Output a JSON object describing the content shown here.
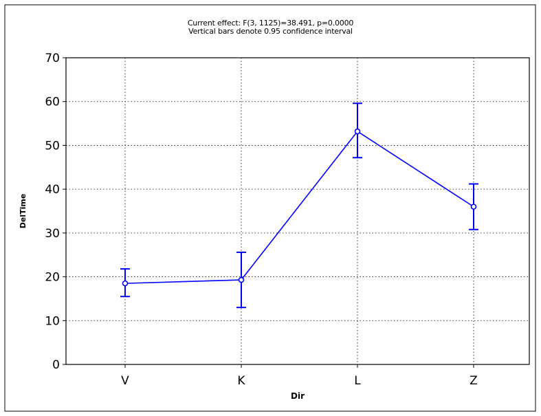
{
  "chart_data": {
    "type": "line",
    "title": "Current effect: F(3, 1125)=38.491, p=0.0000",
    "subtitle": "Vertical bars denote 0.95 confidence interval",
    "xlabel": "Dir",
    "ylabel": "DelTime",
    "categories": [
      "V",
      "K",
      "L",
      "Z"
    ],
    "ylim": [
      0,
      70
    ],
    "yticks": [
      0,
      10,
      20,
      30,
      40,
      50,
      60,
      70
    ],
    "grid": true,
    "series": [
      {
        "values": [
          18.5,
          19.3,
          53.2,
          36.0
        ],
        "ci_lower": [
          15.5,
          13.0,
          47.2,
          30.8
        ],
        "ci_upper": [
          21.8,
          25.6,
          59.6,
          41.2
        ]
      }
    ],
    "colors": {
      "series": "#0000ff",
      "grid": "#000000",
      "axis": "#000000"
    }
  }
}
